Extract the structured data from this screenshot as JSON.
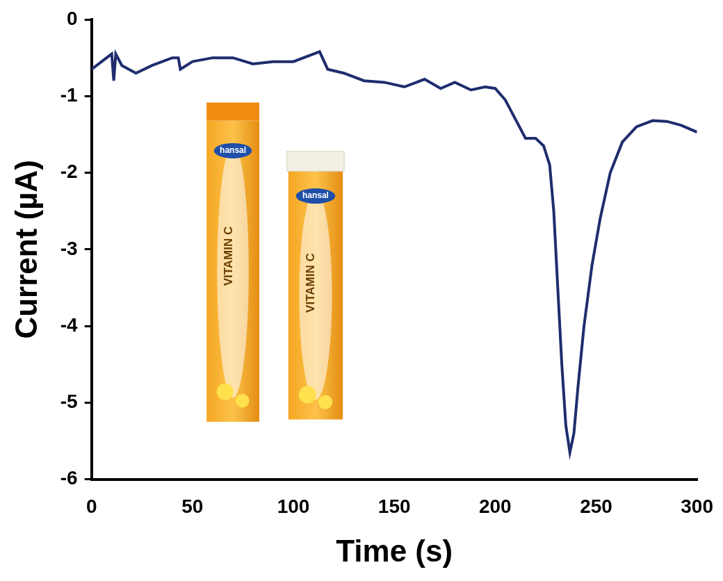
{
  "chart_data": {
    "type": "line",
    "x_label": "Time (s)",
    "y_label": "Current (µA)",
    "annotations": [
      "hansal",
      "VITAMIN C"
    ],
    "series": [
      {
        "name": "Current",
        "color": "#1f2d6e",
        "x": [
          0,
          5,
          10,
          11,
          12,
          15,
          22,
          30,
          40,
          43,
          44,
          50,
          60,
          70,
          80,
          90,
          100,
          110,
          113,
          117,
          125,
          135,
          145,
          155,
          165,
          173,
          180,
          188,
          195,
          200,
          205,
          210,
          215,
          220,
          224,
          227,
          229,
          231,
          233,
          235,
          237,
          239,
          241,
          244,
          248,
          252,
          257,
          263,
          270,
          278,
          285,
          292,
          300
        ],
        "values": [
          -0.65,
          -0.55,
          -0.45,
          -0.8,
          -0.45,
          -0.6,
          -0.7,
          -0.6,
          -0.5,
          -0.5,
          -0.65,
          -0.55,
          -0.5,
          -0.5,
          -0.58,
          -0.55,
          -0.55,
          -0.45,
          -0.42,
          -0.65,
          -0.7,
          -0.8,
          -0.82,
          -0.88,
          -0.78,
          -0.9,
          -0.82,
          -0.92,
          -0.88,
          -0.9,
          -1.05,
          -1.3,
          -1.55,
          -1.55,
          -1.65,
          -1.9,
          -2.5,
          -3.5,
          -4.5,
          -5.3,
          -5.65,
          -5.4,
          -4.8,
          -4.0,
          -3.2,
          -2.6,
          -2.0,
          -1.6,
          -1.4,
          -1.32,
          -1.33,
          -1.38,
          -1.47
        ]
      }
    ],
    "xlim": [
      0,
      300
    ],
    "xticks": [
      0,
      50,
      100,
      150,
      200,
      250,
      300
    ],
    "ylim": [
      -6,
      0
    ],
    "yticks": [
      -6,
      -5,
      -4,
      -3,
      -2,
      -1,
      0
    ],
    "grid": false
  }
}
